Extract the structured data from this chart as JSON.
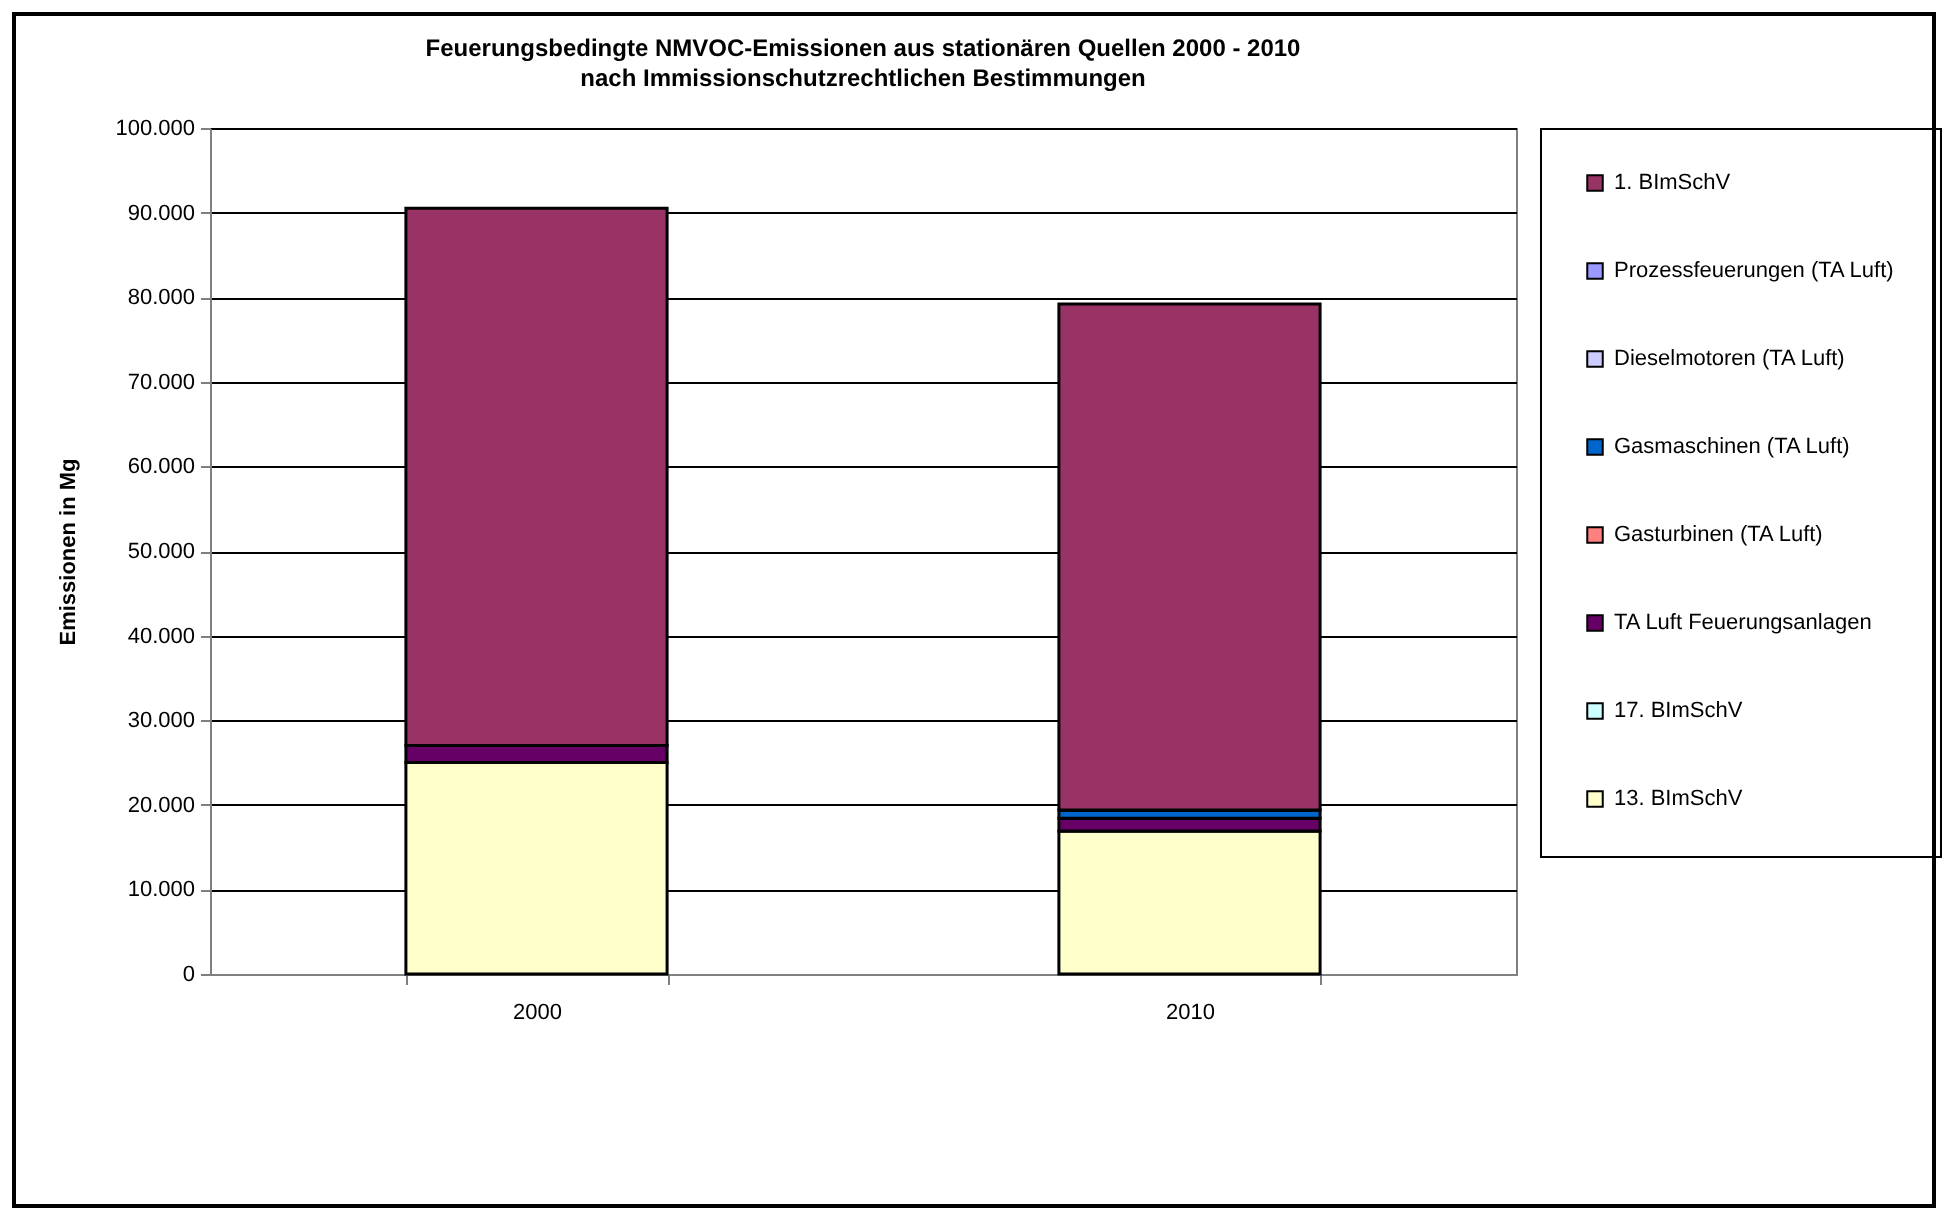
{
  "chart_data": {
    "type": "bar",
    "stacked": true,
    "title": "Feuerungsbedingte NMVOC-Emissionen aus stationären Quellen 2000 - 2010",
    "subtitle": "nach Immissionschutzrechtlichen Bestimmungen",
    "ylabel": "Emissionen in Mg",
    "categories": [
      "2000",
      "2010"
    ],
    "series": [
      {
        "name": "13. BImSchV",
        "color": "#ffffcc",
        "values": [
          25000,
          16900
        ]
      },
      {
        "name": "17. BImSchV",
        "color": "#ccffff",
        "values": [
          0,
          0
        ]
      },
      {
        "name": "TA Luft Feuerungsanlagen",
        "color": "#660066",
        "values": [
          2000,
          1500
        ]
      },
      {
        "name": "Gasturbinen (TA Luft)",
        "color": "#ff8080",
        "values": [
          0,
          0
        ]
      },
      {
        "name": "Gasmaschinen (TA Luft)",
        "color": "#0066cc",
        "values": [
          0,
          1000
        ]
      },
      {
        "name": "Dieselmotoren (TA Luft)",
        "color": "#ccccff",
        "values": [
          0,
          0
        ]
      },
      {
        "name": "Prozessfeuerungen (TA Luft)",
        "color": "#9999ff",
        "values": [
          0,
          0
        ]
      },
      {
        "name": "1. BImSchV",
        "color": "#993366",
        "values": [
          63500,
          59800
        ]
      }
    ],
    "ylim": [
      0,
      100000
    ],
    "yticks": [
      0,
      {
        "value": 10000,
        "label": "10.000"
      },
      {
        "value": 20000,
        "label": "20.000"
      },
      {
        "value": 30000,
        "label": "30.000"
      },
      {
        "value": 40000,
        "label": "40.000"
      },
      {
        "value": 50000,
        "label": "50.000"
      },
      {
        "value": 60000,
        "label": "60.000"
      },
      {
        "value": 70000,
        "label": "70.000"
      },
      {
        "value": 80000,
        "label": "80.000"
      },
      {
        "value": 90000,
        "label": "90.000"
      },
      {
        "value": 100000,
        "label": "100.000"
      }
    ],
    "grid": "y",
    "legend": "right"
  }
}
